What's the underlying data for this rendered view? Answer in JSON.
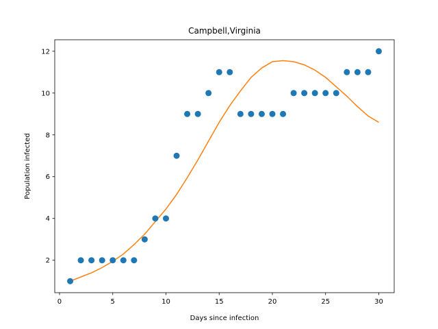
{
  "chart_data": {
    "type": "scatter",
    "title": "Campbell,Virginia",
    "xlabel": "Days since infection",
    "ylabel": "Population infected",
    "xlim": [
      -0.45,
      31.45
    ],
    "ylim": [
      0.45,
      12.55
    ],
    "xticks": [
      0,
      5,
      10,
      15,
      20,
      25,
      30
    ],
    "yticks": [
      2,
      4,
      6,
      8,
      10,
      12
    ],
    "grid": false,
    "series": [
      {
        "kind": "scatter",
        "color": "#1f77b4",
        "x": [
          1,
          2,
          3,
          4,
          5,
          6,
          7,
          8,
          9,
          10,
          11,
          12,
          13,
          14,
          15,
          16,
          17,
          18,
          19,
          20,
          21,
          22,
          23,
          24,
          25,
          26,
          27,
          28,
          29,
          30
        ],
        "y": [
          1,
          2,
          2,
          2,
          2,
          2,
          2,
          3,
          4,
          4,
          7,
          9,
          9,
          10,
          11,
          11,
          9,
          9,
          9,
          9,
          9,
          10,
          10,
          10,
          10,
          10,
          11,
          11,
          11,
          12
        ]
      },
      {
        "kind": "line",
        "color": "#ff7f0e",
        "x": [
          1,
          2,
          3,
          4,
          5,
          6,
          7,
          8,
          9,
          10,
          11,
          12,
          13,
          14,
          15,
          16,
          17,
          18,
          19,
          20,
          21,
          22,
          23,
          24,
          25,
          26,
          27,
          28,
          29,
          30
        ],
        "y": [
          1.0,
          1.2,
          1.4,
          1.65,
          1.95,
          2.3,
          2.75,
          3.25,
          3.85,
          4.45,
          5.15,
          5.95,
          6.8,
          7.7,
          8.6,
          9.4,
          10.1,
          10.75,
          11.2,
          11.5,
          11.55,
          11.5,
          11.35,
          11.1,
          10.75,
          10.3,
          9.85,
          9.35,
          8.9,
          8.6
        ]
      }
    ]
  }
}
